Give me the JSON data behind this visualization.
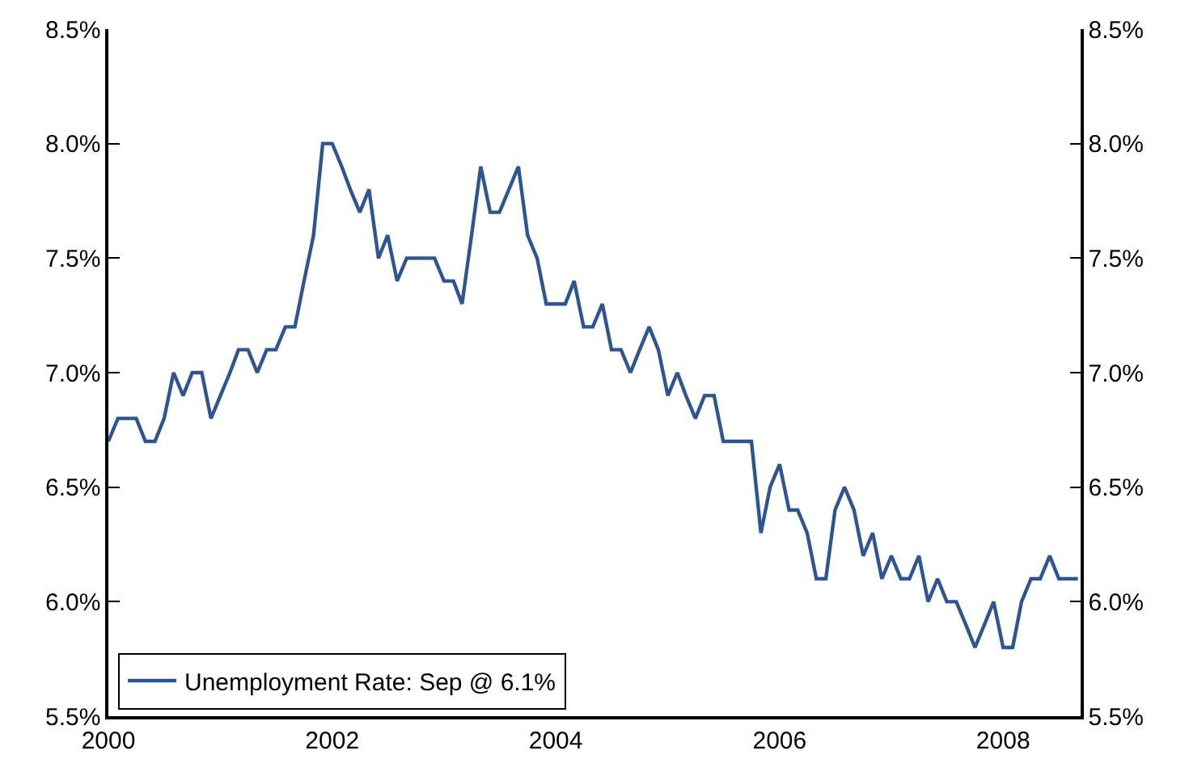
{
  "chart_data": {
    "type": "line",
    "x": [
      "2000-01",
      "2000-02",
      "2000-03",
      "2000-04",
      "2000-05",
      "2000-06",
      "2000-07",
      "2000-08",
      "2000-09",
      "2000-10",
      "2000-11",
      "2000-12",
      "2001-01",
      "2001-02",
      "2001-03",
      "2001-04",
      "2001-05",
      "2001-06",
      "2001-07",
      "2001-08",
      "2001-09",
      "2001-10",
      "2001-11",
      "2001-12",
      "2002-01",
      "2002-02",
      "2002-03",
      "2002-04",
      "2002-05",
      "2002-06",
      "2002-07",
      "2002-08",
      "2002-09",
      "2002-10",
      "2002-11",
      "2002-12",
      "2003-01",
      "2003-02",
      "2003-03",
      "2003-04",
      "2003-05",
      "2003-06",
      "2003-07",
      "2003-08",
      "2003-09",
      "2003-10",
      "2003-11",
      "2003-12",
      "2004-01",
      "2004-02",
      "2004-03",
      "2004-04",
      "2004-05",
      "2004-06",
      "2004-07",
      "2004-08",
      "2004-09",
      "2004-10",
      "2004-11",
      "2004-12",
      "2005-01",
      "2005-02",
      "2005-03",
      "2005-04",
      "2005-05",
      "2005-06",
      "2005-07",
      "2005-08",
      "2005-09",
      "2005-10",
      "2005-11",
      "2005-12",
      "2006-01",
      "2006-02",
      "2006-03",
      "2006-04",
      "2006-05",
      "2006-06",
      "2006-07",
      "2006-08",
      "2006-09",
      "2006-10",
      "2006-11",
      "2006-12",
      "2007-01",
      "2007-02",
      "2007-03",
      "2007-04",
      "2007-05",
      "2007-06",
      "2007-07",
      "2007-08",
      "2007-09",
      "2007-10",
      "2007-11",
      "2007-12",
      "2008-01",
      "2008-02",
      "2008-03",
      "2008-04",
      "2008-05",
      "2008-06",
      "2008-07",
      "2008-08",
      "2008-09"
    ],
    "series": [
      {
        "name": "Unemployment Rate: Sep @ 6.1%",
        "color": "#2e5591",
        "values": [
          6.7,
          6.8,
          6.8,
          6.8,
          6.7,
          6.7,
          6.8,
          7.0,
          6.9,
          7.0,
          7.0,
          6.8,
          6.9,
          7.0,
          7.1,
          7.1,
          7.0,
          7.1,
          7.1,
          7.2,
          7.2,
          7.4,
          7.6,
          8.0,
          8.0,
          7.9,
          7.8,
          7.7,
          7.8,
          7.5,
          7.6,
          7.4,
          7.5,
          7.5,
          7.5,
          7.5,
          7.4,
          7.4,
          7.3,
          7.6,
          7.9,
          7.7,
          7.7,
          7.8,
          7.9,
          7.6,
          7.5,
          7.3,
          7.3,
          7.3,
          7.4,
          7.2,
          7.2,
          7.3,
          7.1,
          7.1,
          7.0,
          7.1,
          7.2,
          7.1,
          6.9,
          7.0,
          6.9,
          6.8,
          6.9,
          6.9,
          6.7,
          6.7,
          6.7,
          6.7,
          6.3,
          6.5,
          6.6,
          6.4,
          6.4,
          6.3,
          6.1,
          6.1,
          6.4,
          6.5,
          6.4,
          6.2,
          6.3,
          6.1,
          6.2,
          6.1,
          6.1,
          6.2,
          6.0,
          6.1,
          6.0,
          6.0,
          5.9,
          5.8,
          5.9,
          6.0,
          5.8,
          5.8,
          6.0,
          6.1,
          6.1,
          6.2,
          6.1,
          6.1,
          6.1
        ]
      }
    ],
    "xlim": [
      "2000-01-01",
      "2008-09-10"
    ],
    "xticks": [
      {
        "value": "2000-01-01",
        "label": "2000"
      },
      {
        "value": "2002-01-01",
        "label": "2002"
      },
      {
        "value": "2004-01-01",
        "label": "2004"
      },
      {
        "value": "2006-01-01",
        "label": "2006"
      },
      {
        "value": "2008-01-01",
        "label": "2008"
      }
    ],
    "ylim": [
      5.5,
      8.5
    ],
    "yticks": [
      {
        "value": 5.5,
        "label": "5.5%"
      },
      {
        "value": 6.0,
        "label": "6.0%"
      },
      {
        "value": 6.5,
        "label": "6.5%"
      },
      {
        "value": 7.0,
        "label": "7.0%"
      },
      {
        "value": 7.5,
        "label": "7.5%"
      },
      {
        "value": 8.0,
        "label": "8.0%"
      },
      {
        "value": 8.5,
        "label": "8.5%"
      }
    ],
    "y2lim": [
      5.5,
      8.5
    ],
    "y2ticks": [
      {
        "value": 5.5,
        "label": "5.5%"
      },
      {
        "value": 6.0,
        "label": "6.0%"
      },
      {
        "value": 6.5,
        "label": "6.5%"
      },
      {
        "value": 7.0,
        "label": "7.0%"
      },
      {
        "value": 7.5,
        "label": "7.5%"
      },
      {
        "value": 8.0,
        "label": "8.0%"
      },
      {
        "value": 8.5,
        "label": "8.5%"
      }
    ],
    "grid": false,
    "legend": "bottom left",
    "marker": "none",
    "line_style": "solid"
  }
}
